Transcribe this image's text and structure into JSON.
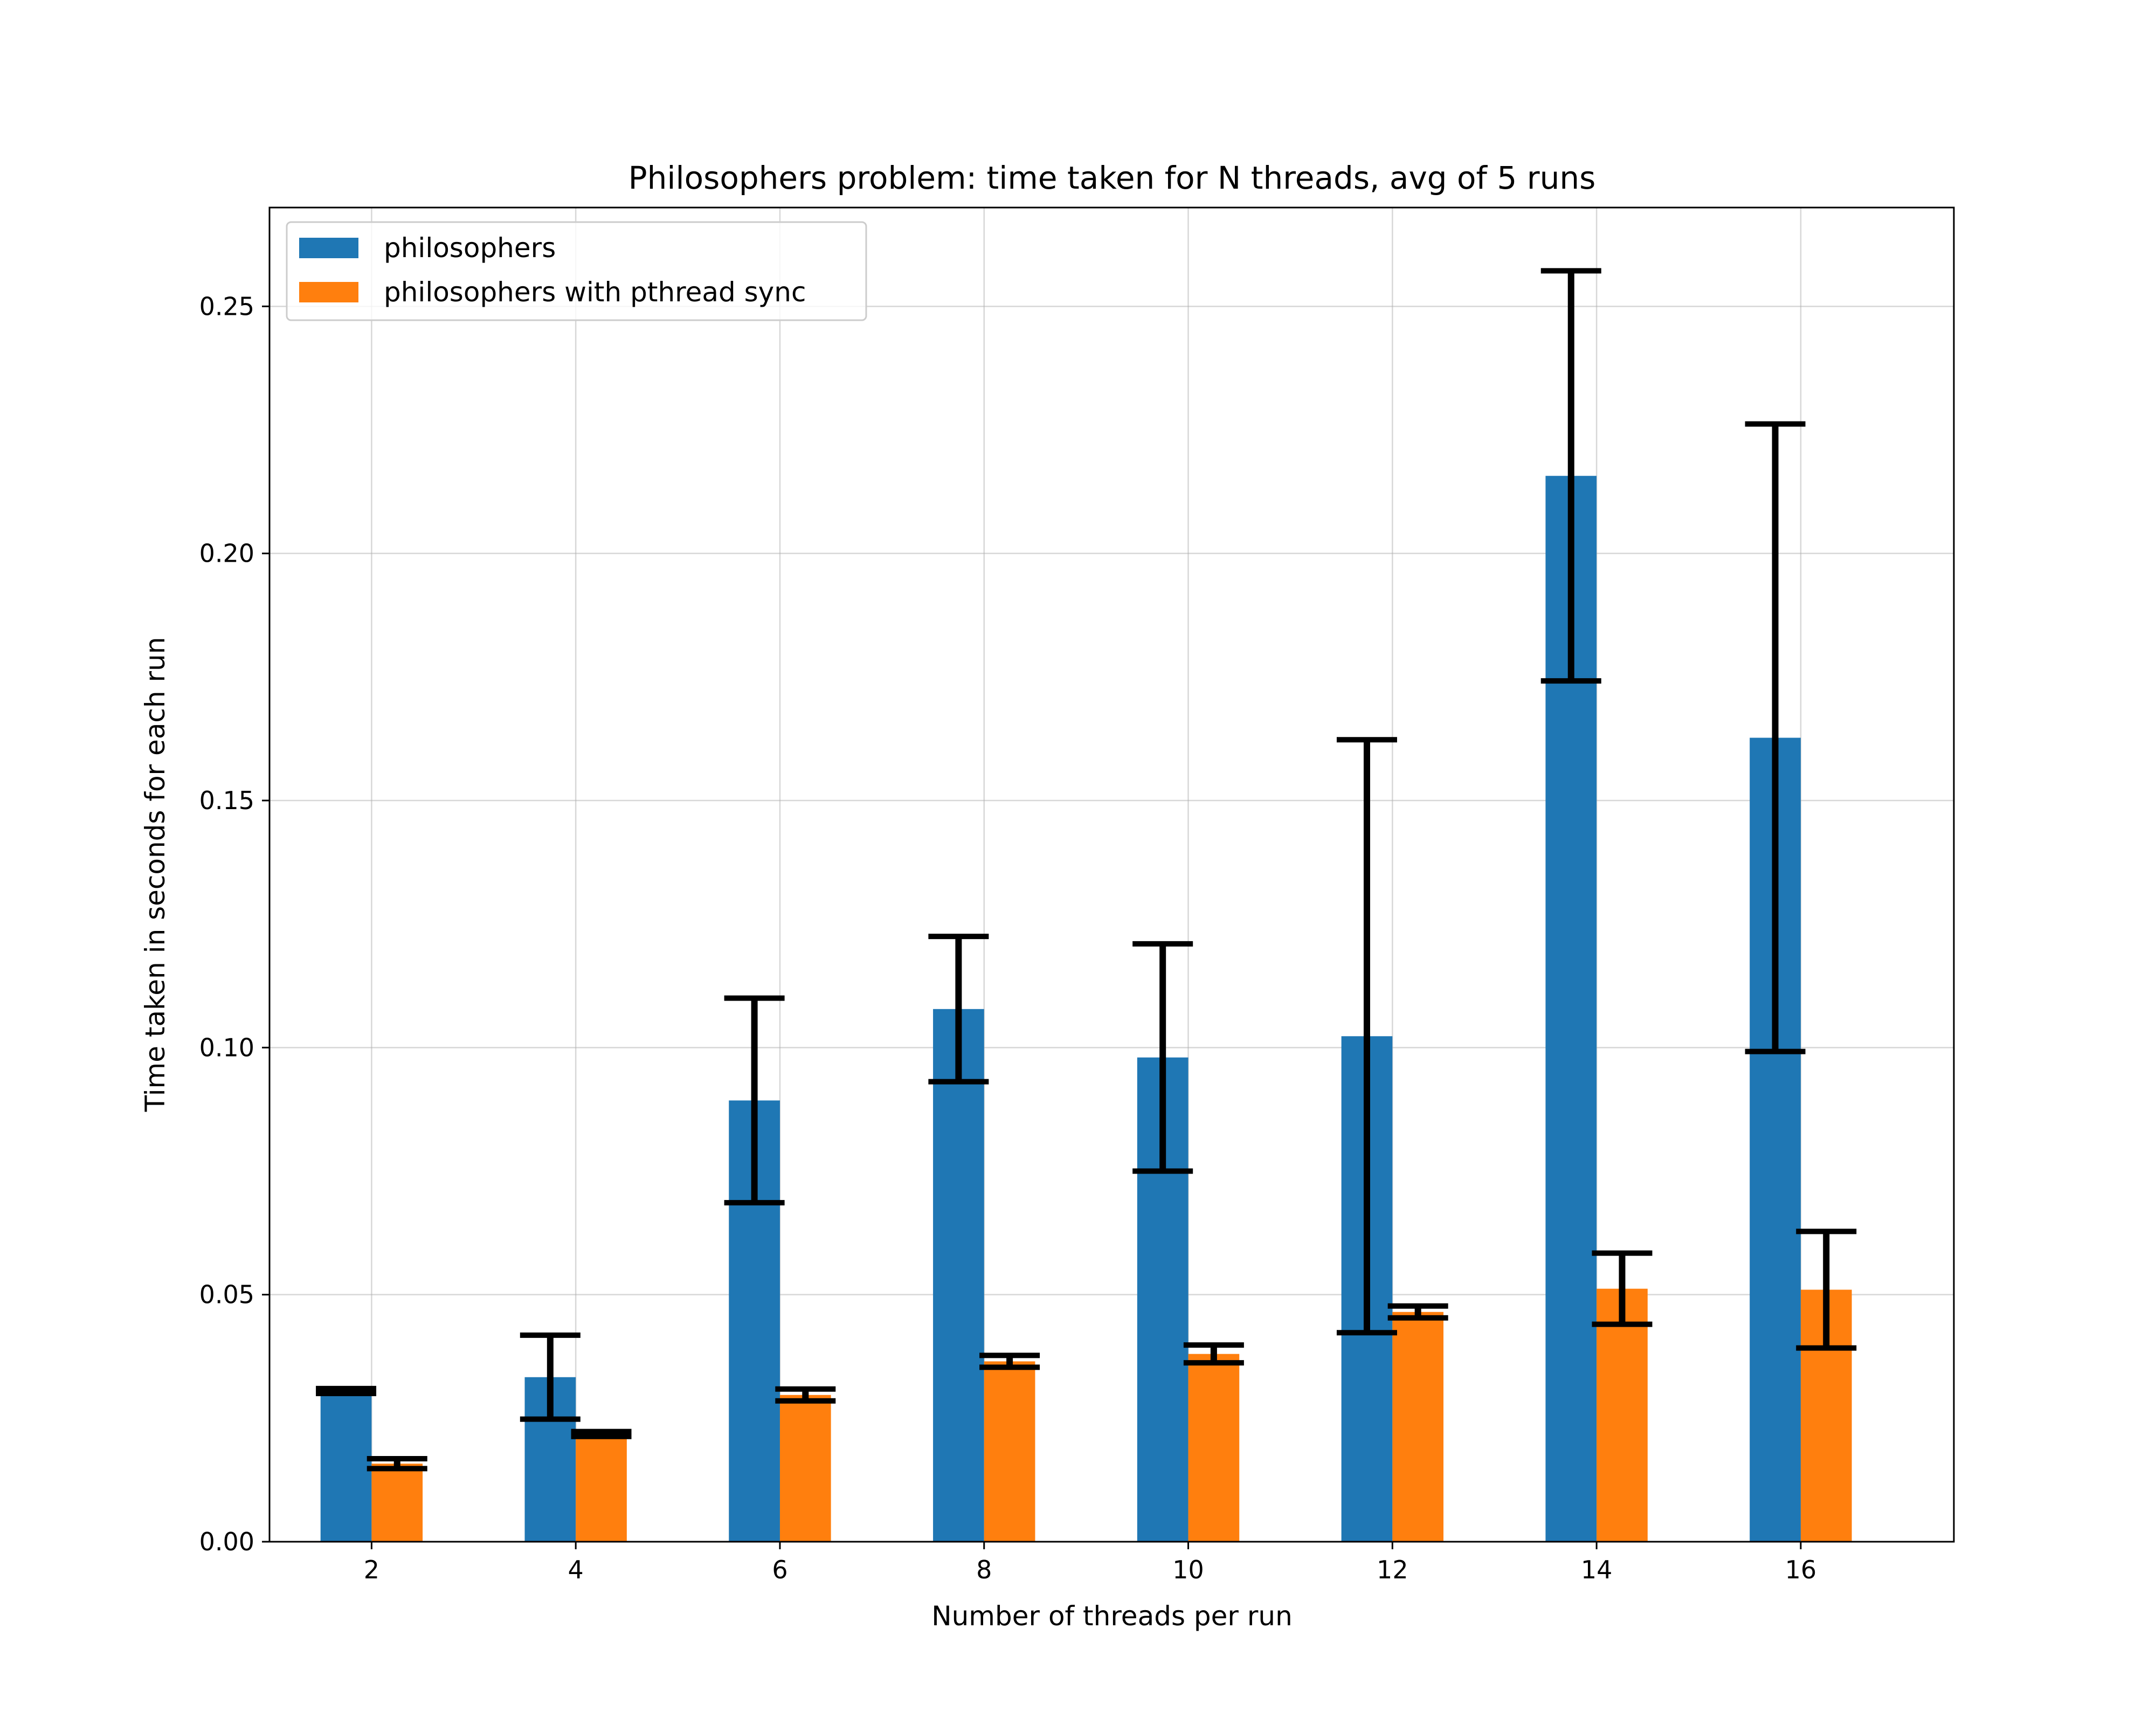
{
  "chart_data": {
    "type": "bar",
    "title": "Philosophers problem: time taken for N threads, avg of 5 runs",
    "xlabel": "Number of threads per run",
    "ylabel": "Time taken in seconds for each run",
    "categories": [
      "2",
      "4",
      "6",
      "8",
      "10",
      "12",
      "14",
      "16"
    ],
    "xlim": [
      1,
      17.5
    ],
    "ylim": [
      0,
      0.27
    ],
    "yticks": [
      "0.00",
      "0.05",
      "0.10",
      "0.15",
      "0.20",
      "0.25"
    ],
    "grid": true,
    "legend_position": "top-left",
    "series": [
      {
        "name": "philosophers",
        "color": "#1f77b4",
        "values": [
          0.0305,
          0.0333,
          0.0893,
          0.1078,
          0.098,
          0.1023,
          0.2157,
          0.1627
        ],
        "errors": [
          0.0005,
          0.0085,
          0.0207,
          0.0147,
          0.023,
          0.06,
          0.0415,
          0.0635
        ]
      },
      {
        "name": "philosophers with pthread sync",
        "color": "#ff7f0e",
        "values": [
          0.0158,
          0.0218,
          0.0297,
          0.0365,
          0.038,
          0.0465,
          0.0512,
          0.051
        ],
        "errors": [
          0.001,
          0.0005,
          0.0012,
          0.0012,
          0.0018,
          0.0012,
          0.0072,
          0.0118
        ]
      }
    ]
  }
}
